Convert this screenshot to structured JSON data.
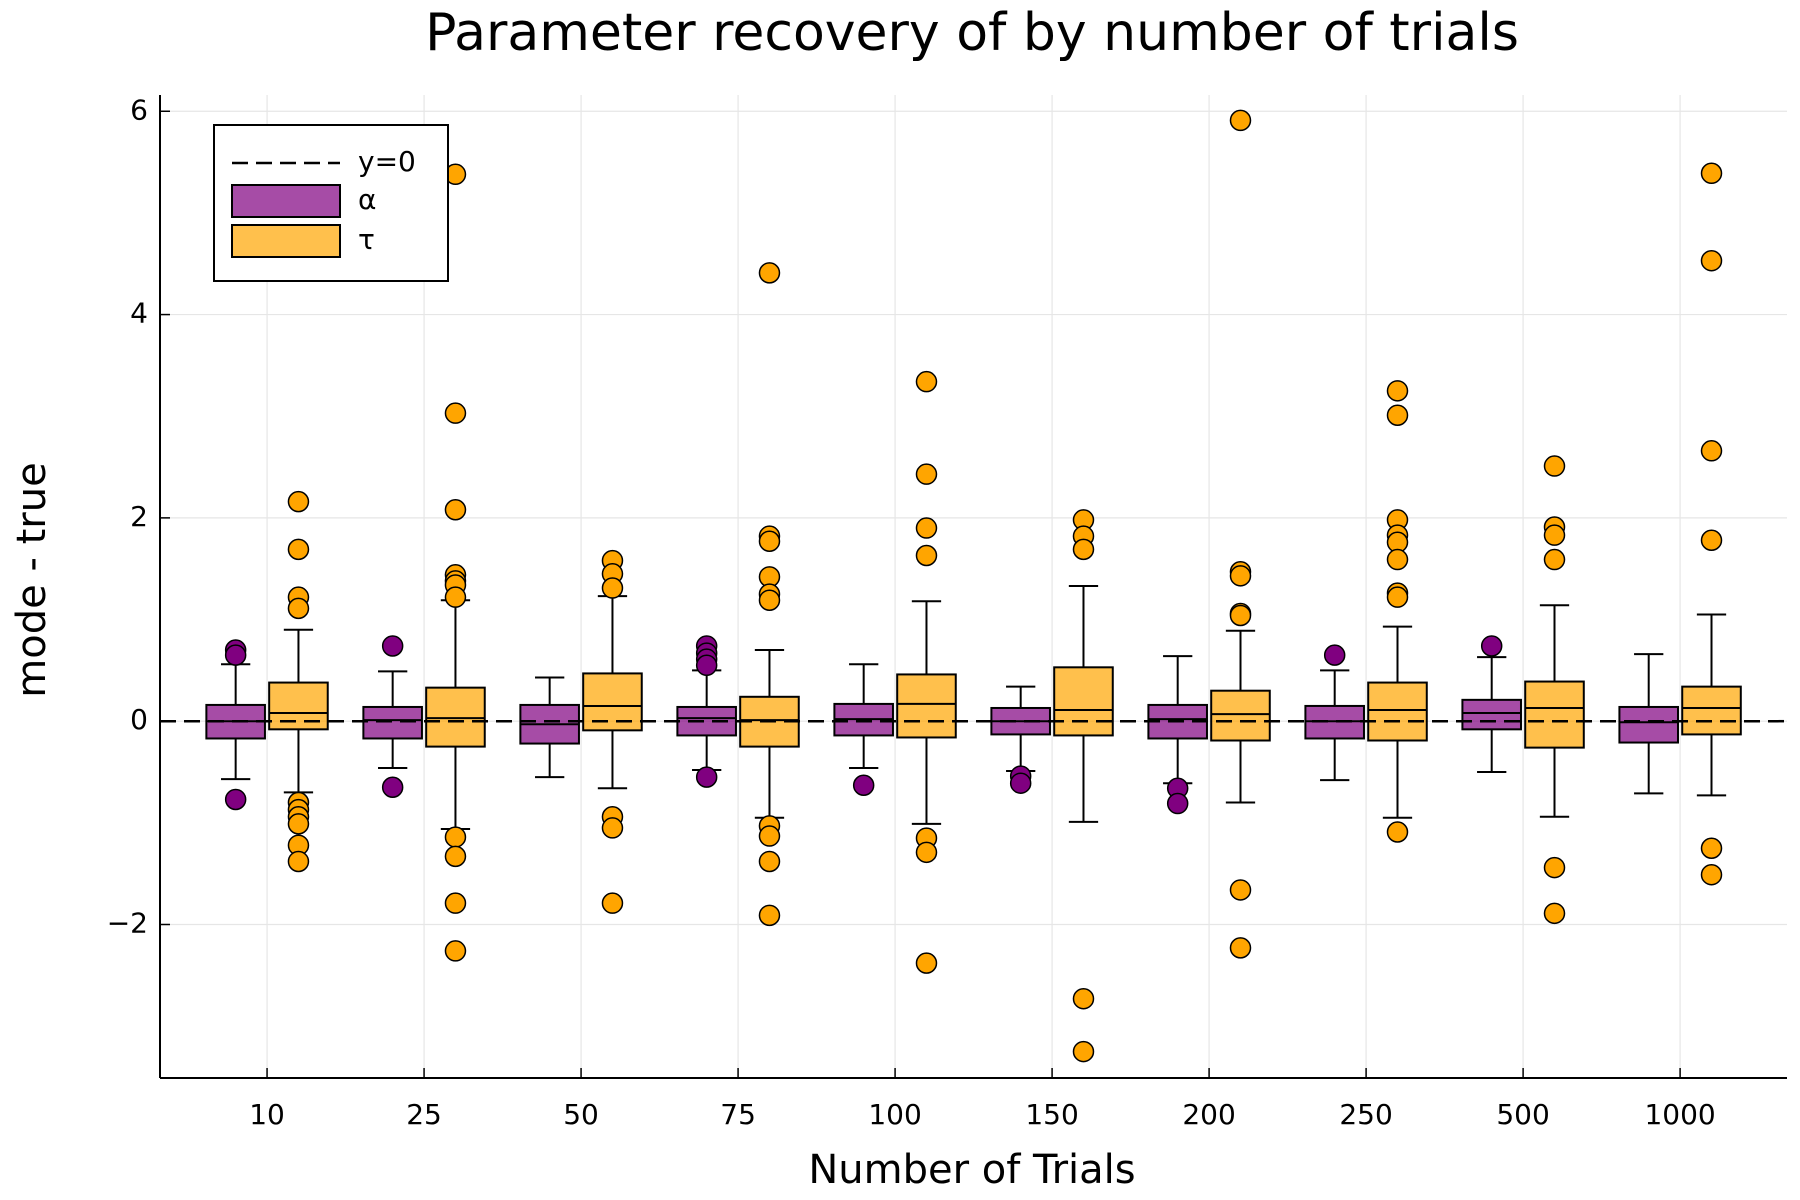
{
  "chart_data": {
    "type": "box",
    "title": "Parameter recovery of by number of trials",
    "x_label": "Number of Trials",
    "y_label": "mode - true",
    "categories": [
      "10",
      "25",
      "50",
      "75",
      "100",
      "150",
      "200",
      "250",
      "500",
      "1000"
    ],
    "ylim": [
      -3.51,
      6.16
    ],
    "yticks": [
      {
        "value": -2,
        "label": "−2"
      },
      0,
      2,
      4,
      6
    ],
    "grid": true,
    "legend": "top left",
    "hline": {
      "label": "y=0",
      "value": 0,
      "color": "#000000"
    },
    "series": [
      {
        "name": "α",
        "color": "#800080",
        "whisker_low": [
          -0.57,
          -0.46,
          -0.55,
          -0.48,
          -0.46,
          -0.49,
          -0.61,
          -0.58,
          -0.5,
          -0.71
        ],
        "q1": [
          -0.17,
          -0.17,
          -0.22,
          -0.14,
          -0.14,
          -0.13,
          -0.17,
          -0.17,
          -0.08,
          -0.21
        ],
        "median": [
          0,
          0.01,
          -0.03,
          0.03,
          0.02,
          0,
          0.02,
          0,
          0.08,
          -0.01
        ],
        "q3": [
          0.16,
          0.14,
          0.16,
          0.14,
          0.17,
          0.13,
          0.16,
          0.15,
          0.21,
          0.14
        ],
        "whisker_high": [
          0.56,
          0.49,
          0.43,
          0.5,
          0.56,
          0.34,
          0.64,
          0.5,
          0.63,
          0.66
        ],
        "outliers": [
          [
            0.7,
            0.65,
            -0.77
          ],
          [
            0.74,
            -0.65
          ],
          [],
          [
            0.74,
            0.67,
            0.61,
            0.55,
            -0.55
          ],
          [
            -0.63
          ],
          [
            -0.54,
            -0.61
          ],
          [
            -0.66,
            -0.81
          ],
          [
            0.65
          ],
          [
            0.74
          ],
          []
        ]
      },
      {
        "name": "τ",
        "color": "#ffa500",
        "whisker_low": [
          -0.7,
          -1.06,
          -0.66,
          -0.95,
          -1.01,
          -0.99,
          -0.8,
          -0.95,
          -0.94,
          -0.73
        ],
        "q1": [
          -0.08,
          -0.25,
          -0.09,
          -0.25,
          -0.16,
          -0.14,
          -0.19,
          -0.19,
          -0.26,
          -0.13
        ],
        "median": [
          0.08,
          0.03,
          0.15,
          0.01,
          0.17,
          0.11,
          0.07,
          0.11,
          0.13,
          0.13
        ],
        "q3": [
          0.38,
          0.33,
          0.47,
          0.24,
          0.46,
          0.53,
          0.3,
          0.38,
          0.39,
          0.34
        ],
        "whisker_high": [
          0.9,
          1.19,
          1.23,
          0.7,
          1.18,
          1.33,
          0.89,
          0.93,
          1.14,
          1.05
        ],
        "outliers": [
          [
            2.16,
            1.69,
            1.22,
            1.11,
            -0.8,
            -0.87,
            -0.94,
            -1.01,
            -1.22,
            -1.38
          ],
          [
            5.38,
            3.03,
            2.08,
            1.44,
            1.38,
            1.34,
            1.22,
            -1.14,
            -1.33,
            -1.79,
            -2.26
          ],
          [
            1.58,
            1.45,
            1.31,
            -0.94,
            -1.05,
            -1.79
          ],
          [
            4.41,
            1.82,
            1.77,
            1.42,
            1.25,
            1.19,
            -1.03,
            -1.13,
            -1.38,
            -1.91
          ],
          [
            3.34,
            2.43,
            1.9,
            1.63,
            -1.15,
            -1.29,
            -2.38
          ],
          [
            1.98,
            1.82,
            1.69,
            -2.73,
            -3.25
          ],
          [
            5.91,
            1.47,
            1.43,
            1.06,
            1.04,
            -1.66,
            -2.23
          ],
          [
            3.25,
            3.01,
            1.98,
            1.83,
            1.76,
            1.59,
            1.26,
            1.22,
            -1.09
          ],
          [
            2.51,
            1.91,
            1.83,
            1.59,
            -1.44,
            -1.89
          ],
          [
            5.39,
            4.53,
            2.66,
            1.78,
            -1.25,
            -1.51
          ]
        ]
      }
    ]
  }
}
